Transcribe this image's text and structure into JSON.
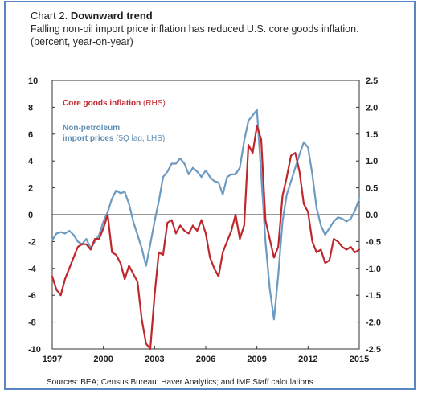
{
  "header": {
    "chart_label": "Chart 2.",
    "title": "Downward trend",
    "subtitle": "Falling non-oil import price inflation has reduced U.S. core goods inflation.",
    "units": "(percent, year-on-year)"
  },
  "source": "Sources: BEA; Census Bureau; Haver Analytics; and IMF Staff calculations",
  "colors": {
    "red_series": "#c0272d",
    "blue_series": "#6c9bc2",
    "frame": "#5b86c4"
  },
  "chart_data": {
    "type": "line",
    "title": "Downward trend",
    "subtitle": "Falling non-oil import price inflation has reduced U.S. core goods inflation.",
    "units": "(percent, year-on-year)",
    "x_ticks": [
      1997,
      2000,
      2003,
      2006,
      2009,
      2012,
      2015
    ],
    "xlim": [
      1997,
      2015
    ],
    "left_axis": {
      "ylim": [
        -10,
        10
      ],
      "ticks": [
        10,
        8,
        6,
        4,
        2,
        0,
        -2,
        -4,
        -6,
        -8,
        -10
      ]
    },
    "right_axis": {
      "ylim": [
        -2.5,
        2.5
      ],
      "ticks": [
        "2.5",
        "2.0",
        "1.5",
        "1.0",
        "0.5",
        "0.0",
        "-0.5",
        "-1.0",
        "-1.5",
        "-2.0",
        "-2.5"
      ]
    },
    "series": [
      {
        "name": "Core goods inflation",
        "name_suffix": "(RHS)",
        "axis": "right",
        "color": "#c0272d",
        "points": [
          [
            1997.0,
            -1.15
          ],
          [
            1997.25,
            -1.4
          ],
          [
            1997.5,
            -1.5
          ],
          [
            1997.75,
            -1.2
          ],
          [
            1998.0,
            -1.0
          ],
          [
            1998.25,
            -0.8
          ],
          [
            1998.5,
            -0.6
          ],
          [
            1998.75,
            -0.55
          ],
          [
            1999.0,
            -0.55
          ],
          [
            1999.25,
            -0.65
          ],
          [
            1999.5,
            -0.45
          ],
          [
            1999.75,
            -0.45
          ],
          [
            2000.0,
            -0.25
          ],
          [
            2000.25,
            0.0
          ],
          [
            2000.5,
            -0.7
          ],
          [
            2000.75,
            -0.75
          ],
          [
            2001.0,
            -0.9
          ],
          [
            2001.25,
            -1.2
          ],
          [
            2001.5,
            -0.95
          ],
          [
            2001.75,
            -1.1
          ],
          [
            2002.0,
            -1.25
          ],
          [
            2002.25,
            -1.95
          ],
          [
            2002.5,
            -2.4
          ],
          [
            2002.75,
            -2.5
          ],
          [
            2003.0,
            -1.5
          ],
          [
            2003.25,
            -0.7
          ],
          [
            2003.5,
            -0.75
          ],
          [
            2003.75,
            -0.15
          ],
          [
            2004.0,
            -0.1
          ],
          [
            2004.25,
            -0.35
          ],
          [
            2004.5,
            -0.2
          ],
          [
            2004.75,
            -0.3
          ],
          [
            2005.0,
            -0.35
          ],
          [
            2005.25,
            -0.2
          ],
          [
            2005.5,
            -0.3
          ],
          [
            2005.75,
            -0.1
          ],
          [
            2006.0,
            -0.35
          ],
          [
            2006.25,
            -0.8
          ],
          [
            2006.5,
            -1.0
          ],
          [
            2006.75,
            -1.15
          ],
          [
            2007.0,
            -0.7
          ],
          [
            2007.25,
            -0.5
          ],
          [
            2007.5,
            -0.3
          ],
          [
            2007.75,
            0.0
          ],
          [
            2008.0,
            -0.45
          ],
          [
            2008.25,
            -0.2
          ],
          [
            2008.5,
            1.3
          ],
          [
            2008.75,
            1.15
          ],
          [
            2009.0,
            1.65
          ],
          [
            2009.25,
            1.4
          ],
          [
            2009.5,
            -0.1
          ],
          [
            2009.75,
            -0.45
          ],
          [
            2010.0,
            -0.8
          ],
          [
            2010.25,
            -0.6
          ],
          [
            2010.5,
            0.35
          ],
          [
            2010.75,
            0.7
          ],
          [
            2011.0,
            1.1
          ],
          [
            2011.25,
            1.15
          ],
          [
            2011.5,
            0.8
          ],
          [
            2011.75,
            0.2
          ],
          [
            2012.0,
            0.05
          ],
          [
            2012.25,
            -0.5
          ],
          [
            2012.5,
            -0.7
          ],
          [
            2012.75,
            -0.65
          ],
          [
            2013.0,
            -0.9
          ],
          [
            2013.25,
            -0.85
          ],
          [
            2013.5,
            -0.45
          ],
          [
            2013.75,
            -0.5
          ],
          [
            2014.0,
            -0.6
          ],
          [
            2014.25,
            -0.65
          ],
          [
            2014.5,
            -0.6
          ],
          [
            2014.75,
            -0.7
          ],
          [
            2015.0,
            -0.65
          ]
        ]
      },
      {
        "name": "Non-petroleum import prices",
        "name_suffix": "(5Q lag, LHS)",
        "axis": "left",
        "color": "#6c9bc2",
        "points": [
          [
            1997.0,
            -1.9
          ],
          [
            1997.25,
            -1.4
          ],
          [
            1997.5,
            -1.3
          ],
          [
            1997.75,
            -1.4
          ],
          [
            1998.0,
            -1.2
          ],
          [
            1998.25,
            -1.5
          ],
          [
            1998.5,
            -2.0
          ],
          [
            1998.75,
            -2.2
          ],
          [
            1999.0,
            -1.8
          ],
          [
            1999.25,
            -2.5
          ],
          [
            1999.5,
            -2.0
          ],
          [
            1999.75,
            -1.5
          ],
          [
            2000.0,
            -0.5
          ],
          [
            2000.25,
            0.2
          ],
          [
            2000.5,
            1.2
          ],
          [
            2000.75,
            1.8
          ],
          [
            2001.0,
            1.6
          ],
          [
            2001.25,
            1.7
          ],
          [
            2001.5,
            0.8
          ],
          [
            2001.75,
            -0.5
          ],
          [
            2002.0,
            -1.5
          ],
          [
            2002.25,
            -2.5
          ],
          [
            2002.5,
            -3.8
          ],
          [
            2002.75,
            -2.2
          ],
          [
            2003.0,
            -0.5
          ],
          [
            2003.25,
            1.0
          ],
          [
            2003.5,
            2.8
          ],
          [
            2003.75,
            3.2
          ],
          [
            2004.0,
            3.8
          ],
          [
            2004.25,
            3.8
          ],
          [
            2004.5,
            4.2
          ],
          [
            2004.75,
            3.8
          ],
          [
            2005.0,
            3.0
          ],
          [
            2005.25,
            3.5
          ],
          [
            2005.5,
            3.2
          ],
          [
            2005.75,
            2.8
          ],
          [
            2006.0,
            3.3
          ],
          [
            2006.25,
            2.8
          ],
          [
            2006.5,
            2.5
          ],
          [
            2006.75,
            2.4
          ],
          [
            2007.0,
            1.5
          ],
          [
            2007.25,
            2.8
          ],
          [
            2007.5,
            3.0
          ],
          [
            2007.75,
            3.0
          ],
          [
            2008.0,
            3.5
          ],
          [
            2008.25,
            5.5
          ],
          [
            2008.5,
            7.0
          ],
          [
            2008.75,
            7.4
          ],
          [
            2009.0,
            7.8
          ],
          [
            2009.25,
            3.0
          ],
          [
            2009.5,
            -2.0
          ],
          [
            2009.75,
            -5.5
          ],
          [
            2010.0,
            -7.8
          ],
          [
            2010.25,
            -4.5
          ],
          [
            2010.5,
            -0.5
          ],
          [
            2010.75,
            1.5
          ],
          [
            2011.0,
            2.5
          ],
          [
            2011.25,
            3.5
          ],
          [
            2011.5,
            4.5
          ],
          [
            2011.75,
            5.4
          ],
          [
            2012.0,
            5.0
          ],
          [
            2012.25,
            3.0
          ],
          [
            2012.5,
            0.5
          ],
          [
            2012.75,
            -0.8
          ],
          [
            2013.0,
            -1.5
          ],
          [
            2013.25,
            -1.0
          ],
          [
            2013.5,
            -0.5
          ],
          [
            2013.75,
            -0.2
          ],
          [
            2014.0,
            -0.3
          ],
          [
            2014.25,
            -0.5
          ],
          [
            2014.5,
            -0.3
          ],
          [
            2014.75,
            0.3
          ],
          [
            2015.0,
            1.2
          ]
        ]
      }
    ],
    "grid": false,
    "legend": "top-left, inline labels"
  }
}
